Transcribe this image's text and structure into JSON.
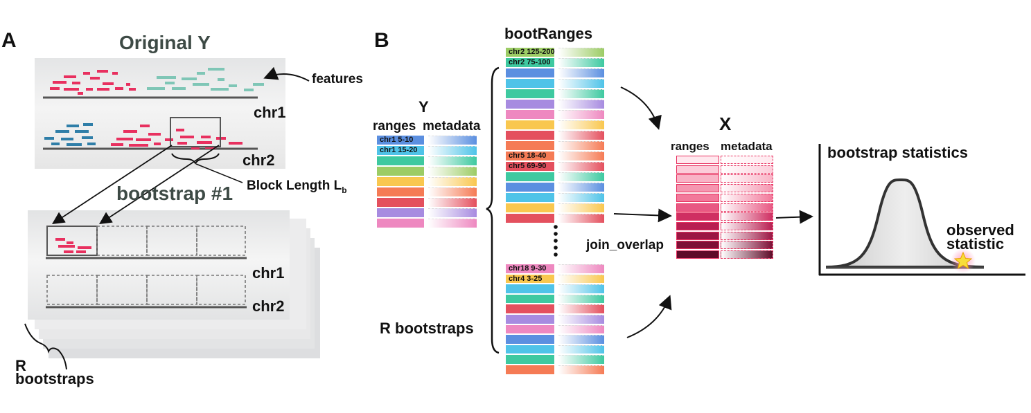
{
  "panel_a": {
    "letter": "A",
    "title": "Original Y",
    "features_label": "features",
    "chr1": "chr1",
    "chr2": "chr2",
    "block_length": "Block Length L",
    "block_length_sub": "b",
    "bootstrap_title": "bootstrap #1",
    "boot_chr1": "chr1",
    "boot_chr2": "chr2",
    "r_bootstraps_line1": "R",
    "r_bootstraps_line2": "bootstraps"
  },
  "panel_b": {
    "letter": "B",
    "y_title": "Y",
    "y_ranges": "ranges",
    "y_metadata": "metadata",
    "y_rows": [
      "chr1 5-10",
      "chr1 15-20"
    ],
    "bootranges_title": "bootRanges",
    "boot1_rows": [
      "chr2 125-200",
      "chr2 75-100"
    ],
    "boot2_rows": [
      "chr5 18-40",
      "chr5 69-90"
    ],
    "boot3_rows": [
      "chr18 9-30",
      "chr4 3-25"
    ],
    "r_bootstraps": "R bootstraps",
    "join_overlap": "join_overlap",
    "x_title": "X",
    "x_ranges": "ranges",
    "x_metadata": "metadata",
    "stats_title": "bootstrap statistics",
    "observed_line1": "observed",
    "observed_line2": "statistic"
  },
  "colors": {
    "pink": "#e8305f",
    "teal": "#7fc6b6",
    "blue": "#2f7ea8",
    "palette": [
      "#5b8fe0",
      "#4fc3e8",
      "#3ec9a0",
      "#9ccc65",
      "#f9c74f",
      "#f57b55",
      "#e4505e",
      "#a78be0",
      "#ee88c0"
    ]
  }
}
